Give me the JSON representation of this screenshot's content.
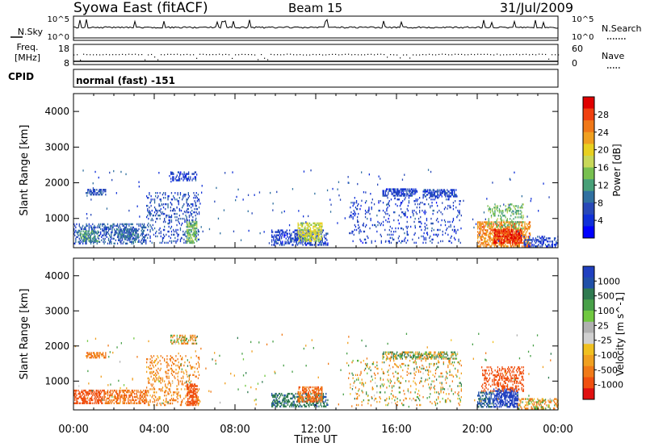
{
  "header": {
    "station": "Syowa East (fitACF)",
    "beam": "Beam 15",
    "date": "31/Jul/2009"
  },
  "noise_panel": {
    "left_label": "N.Sky",
    "right_label": "N.Search",
    "left_ticks": [
      "10^5",
      "10^0"
    ],
    "right_ticks": [
      "10^5",
      "10^0"
    ]
  },
  "freq_panel": {
    "left_label_1": "Freq.",
    "left_label_2": "[MHz]",
    "right_label": "Nave",
    "left_ticks": [
      "18",
      "8"
    ],
    "right_ticks": [
      "60",
      "0"
    ]
  },
  "cpid_panel": {
    "label": "CPID",
    "text": "normal (fast) -151"
  },
  "power_colorbar": {
    "label": "Power [dB]",
    "ticks": [
      "28",
      "24",
      "20",
      "16",
      "12",
      "8",
      "4"
    ],
    "colors": [
      "#e00000",
      "#f04010",
      "#f07818",
      "#f0a020",
      "#e8d020",
      "#c8d858",
      "#78c050",
      "#48a078",
      "#3070a0",
      "#2848b8",
      "#1030d8",
      "#0000ff"
    ]
  },
  "velocity_colorbar": {
    "label": "Velocity [m s^-1]",
    "ticks": [
      "1000",
      "500",
      "100",
      "25",
      "-25",
      "-100",
      "-500",
      "-1000"
    ],
    "colors": [
      "#2040c0",
      "#2050a8",
      "#2f7a50",
      "#48a048",
      "#70c840",
      "#b0b0b0",
      "#d0d0d0",
      "#f0c020",
      "#f0a020",
      "#f07a18",
      "#f05010",
      "#e01010"
    ]
  },
  "chart_data": [
    {
      "type": "heatmap",
      "name": "power",
      "xlabel": "Time UT",
      "ylabel": "Slant Range [km]",
      "xlim": [
        0,
        24
      ],
      "ylim": [
        180,
        4500
      ],
      "yticks": [
        1000,
        2000,
        3000,
        4000
      ],
      "regions": [
        {
          "t0": 0.6,
          "t1": 1.6,
          "r0": 1650,
          "r1": 1820,
          "v": 7,
          "d": 0.6
        },
        {
          "t0": 0.0,
          "t1": 3.6,
          "r0": 280,
          "r1": 850,
          "v": 8,
          "d": 0.35
        },
        {
          "t0": 0.3,
          "t1": 1.2,
          "r0": 350,
          "r1": 650,
          "v": 12,
          "d": 0.55
        },
        {
          "t0": 2.0,
          "t1": 3.2,
          "r0": 400,
          "r1": 700,
          "v": 9,
          "d": 0.5
        },
        {
          "t0": 3.6,
          "t1": 6.2,
          "r0": 300,
          "r1": 1700,
          "v": 7,
          "d": 0.18
        },
        {
          "t0": 5.6,
          "t1": 6.1,
          "r0": 300,
          "r1": 900,
          "v": 14,
          "d": 0.6
        },
        {
          "t0": 4.8,
          "t1": 6.1,
          "r0": 2050,
          "r1": 2300,
          "v": 6,
          "d": 0.4
        },
        {
          "t0": 9.8,
          "t1": 12.6,
          "r0": 240,
          "r1": 650,
          "v": 6,
          "d": 0.45
        },
        {
          "t0": 11.1,
          "t1": 12.3,
          "r0": 350,
          "r1": 850,
          "v": 18,
          "d": 0.6
        },
        {
          "t0": 13.6,
          "t1": 19.2,
          "r0": 300,
          "r1": 1600,
          "v": 6,
          "d": 0.1
        },
        {
          "t0": 15.3,
          "t1": 17.0,
          "r0": 1620,
          "r1": 1820,
          "v": 6,
          "d": 0.6
        },
        {
          "t0": 17.3,
          "t1": 19.0,
          "r0": 1600,
          "r1": 1800,
          "v": 6,
          "d": 0.55
        },
        {
          "t0": 20.0,
          "t1": 22.6,
          "r0": 200,
          "r1": 900,
          "v": 24,
          "d": 0.55
        },
        {
          "t0": 20.8,
          "t1": 22.2,
          "r0": 300,
          "r1": 700,
          "v": 28,
          "d": 0.7
        },
        {
          "t0": 20.5,
          "t1": 22.3,
          "r0": 700,
          "r1": 1400,
          "v": 14,
          "d": 0.25
        },
        {
          "t0": 22.3,
          "t1": 24.0,
          "r0": 200,
          "r1": 500,
          "v": 6,
          "d": 0.35
        }
      ]
    },
    {
      "type": "heatmap",
      "name": "velocity",
      "xlabel": "Time UT",
      "ylabel": "Slant Range [km]",
      "xlim": [
        0,
        24
      ],
      "ylim": [
        180,
        4500
      ],
      "yticks": [
        1000,
        2000,
        3000,
        4000
      ],
      "xticks": [
        "00:00",
        "04:00",
        "08:00",
        "12:00",
        "16:00",
        "20:00",
        "00:00"
      ],
      "regions": [
        {
          "t0": 0.6,
          "t1": 1.6,
          "r0": 1650,
          "r1": 1820,
          "v": -100,
          "d": 0.6
        },
        {
          "t0": 0.0,
          "t1": 1.5,
          "r0": 350,
          "r1": 750,
          "v": -300,
          "d": 0.5
        },
        {
          "t0": 1.5,
          "t1": 3.6,
          "r0": 350,
          "r1": 750,
          "v": -120,
          "d": 0.45
        },
        {
          "t0": 3.6,
          "t1": 6.2,
          "r0": 300,
          "r1": 1700,
          "v": -80,
          "d": 0.18
        },
        {
          "t0": 5.6,
          "t1": 6.1,
          "r0": 300,
          "r1": 900,
          "v": -400,
          "d": 0.6
        },
        {
          "t0": 4.8,
          "t1": 6.1,
          "r0": 2050,
          "r1": 2300,
          "v": -30,
          "d": 0.4
        },
        {
          "t0": 9.8,
          "t1": 12.6,
          "r0": 260,
          "r1": 650,
          "v": 120,
          "d": 0.45
        },
        {
          "t0": 11.1,
          "t1": 12.3,
          "r0": 400,
          "r1": 850,
          "v": -150,
          "d": 0.55
        },
        {
          "t0": 13.6,
          "t1": 19.2,
          "r0": 300,
          "r1": 1600,
          "v": -20,
          "d": 0.1
        },
        {
          "t0": 15.3,
          "t1": 19.0,
          "r0": 1620,
          "r1": 1820,
          "v": 10,
          "d": 0.5
        },
        {
          "t0": 20.0,
          "t1": 20.8,
          "r0": 250,
          "r1": 700,
          "v": 200,
          "d": 0.5
        },
        {
          "t0": 20.8,
          "t1": 22.0,
          "r0": 250,
          "r1": 750,
          "v": 900,
          "d": 0.6
        },
        {
          "t0": 20.2,
          "t1": 22.3,
          "r0": 700,
          "r1": 1400,
          "v": -500,
          "d": 0.3
        },
        {
          "t0": 22.0,
          "t1": 24.0,
          "r0": 200,
          "r1": 500,
          "v": -40,
          "d": 0.35
        }
      ]
    }
  ]
}
